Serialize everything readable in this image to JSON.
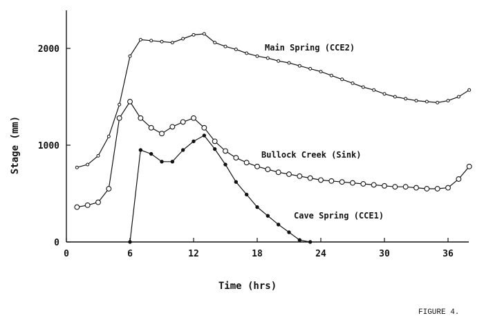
{
  "chart_data": {
    "type": "line",
    "title": "",
    "xlabel": "Time (hrs)",
    "ylabel": "Stage (mm)",
    "xlim": [
      0,
      38
    ],
    "ylim": [
      0,
      2400
    ],
    "xticks": [
      0,
      6,
      12,
      18,
      24,
      30,
      36
    ],
    "xtick_labels": [
      "0",
      "6",
      "12",
      "18",
      "24",
      "30",
      "36"
    ],
    "yticks": [
      0,
      1000,
      2000
    ],
    "ytick_labels": [
      "0",
      "1000",
      "2000"
    ],
    "caption": "FIGURE 4.",
    "series": [
      {
        "name": "Main Spring (CCE2)",
        "marker": "small-circle",
        "x": [
          1,
          2,
          3,
          4,
          5,
          6,
          7,
          8,
          9,
          10,
          11,
          12,
          13,
          14,
          15,
          16,
          17,
          18,
          19,
          20,
          21,
          22,
          23,
          24,
          25,
          26,
          27,
          28,
          29,
          30,
          31,
          32,
          33,
          34,
          35,
          36,
          37,
          38
        ],
        "values": [
          770,
          800,
          890,
          1090,
          1420,
          1920,
          2090,
          2080,
          2070,
          2060,
          2100,
          2140,
          2150,
          2060,
          2020,
          1990,
          1950,
          1920,
          1900,
          1870,
          1850,
          1820,
          1790,
          1760,
          1720,
          1680,
          1640,
          1600,
          1570,
          1530,
          1500,
          1480,
          1460,
          1450,
          1440,
          1460,
          1500,
          1570
        ]
      },
      {
        "name": "Bullock Creek (Sink)",
        "marker": "open-circle",
        "x": [
          1,
          2,
          3,
          4,
          5,
          6,
          7,
          8,
          9,
          10,
          11,
          12,
          13,
          14,
          15,
          16,
          17,
          18,
          19,
          20,
          21,
          22,
          23,
          24,
          25,
          26,
          27,
          28,
          29,
          30,
          31,
          32,
          33,
          34,
          35,
          36,
          37,
          38
        ],
        "values": [
          360,
          380,
          410,
          550,
          1280,
          1450,
          1280,
          1180,
          1120,
          1190,
          1240,
          1280,
          1180,
          1040,
          940,
          870,
          820,
          780,
          750,
          720,
          700,
          680,
          660,
          640,
          630,
          620,
          610,
          600,
          590,
          580,
          570,
          570,
          560,
          550,
          550,
          560,
          650,
          780
        ]
      },
      {
        "name": "Cave Spring (CCE1)",
        "marker": "filled-dot",
        "x": [
          6,
          7,
          8,
          9,
          10,
          11,
          12,
          13,
          14,
          15,
          16,
          17,
          18,
          19,
          20,
          21,
          22,
          23
        ],
        "values": [
          0,
          950,
          910,
          830,
          830,
          950,
          1040,
          1100,
          960,
          800,
          620,
          490,
          360,
          270,
          180,
          100,
          20,
          0
        ]
      }
    ]
  }
}
